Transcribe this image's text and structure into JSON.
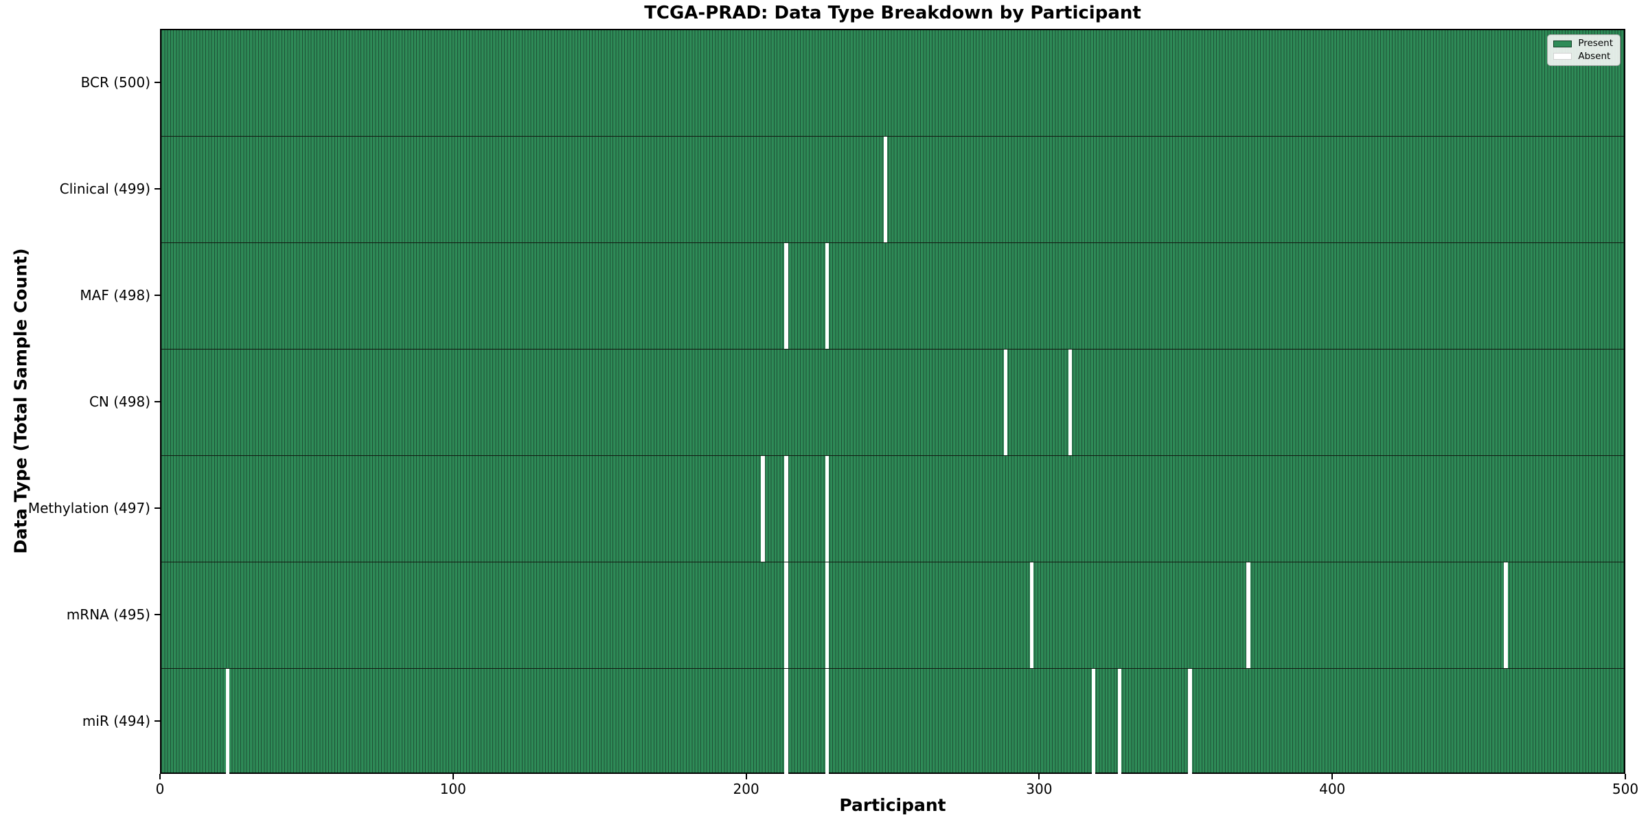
{
  "chart_data": {
    "type": "heatmap",
    "title": "TCGA-PRAD: Data Type Breakdown by Participant",
    "xlabel": "Participant",
    "ylabel": "Data Type (Total Sample Count)",
    "x_range": [
      0,
      500
    ],
    "x_ticks": [
      0,
      100,
      200,
      300,
      400,
      500
    ],
    "n_participants": 500,
    "grid": false,
    "legend_position": "upper right",
    "legend": [
      {
        "label": "Present",
        "color": "#2e8b57"
      },
      {
        "label": "Absent",
        "color": "#ffffff"
      }
    ],
    "colors": {
      "present_fill": "#2e8b57",
      "bar_edge": "#1d4f35",
      "absent_fill": "#ffffff",
      "spine": "#000000",
      "background": "#ffffff"
    },
    "rows": [
      {
        "id": "bcr",
        "label": "BCR (500)",
        "data_type": "BCR",
        "present_count": 500,
        "absent_participants": []
      },
      {
        "id": "clinical",
        "label": "Clinical (499)",
        "data_type": "Clinical",
        "present_count": 499,
        "absent_participants": [
          247
        ]
      },
      {
        "id": "maf",
        "label": "MAF (498)",
        "data_type": "MAF",
        "present_count": 498,
        "absent_participants": [
          213,
          227
        ]
      },
      {
        "id": "cn",
        "label": "CN (498)",
        "data_type": "CN",
        "present_count": 498,
        "absent_participants": [
          288,
          310
        ]
      },
      {
        "id": "methylation",
        "label": "Methylation (497)",
        "data_type": "Methylation",
        "present_count": 497,
        "absent_participants": [
          205,
          213,
          227
        ]
      },
      {
        "id": "mrna",
        "label": "mRNA (495)",
        "data_type": "mRNA",
        "present_count": 495,
        "absent_participants": [
          213,
          227,
          297,
          371,
          459
        ]
      },
      {
        "id": "mir",
        "label": "miR (494)",
        "data_type": "miR",
        "present_count": 494,
        "absent_participants": [
          22,
          213,
          227,
          318,
          327,
          351
        ]
      }
    ]
  }
}
